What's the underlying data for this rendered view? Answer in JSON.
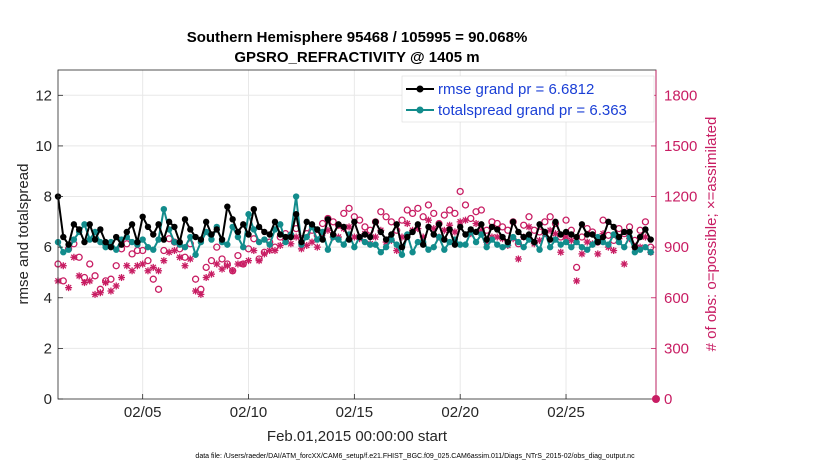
{
  "chart_data": {
    "type": "line",
    "title": "Southern Hemisphere 95468 / 105995 = 90.068%",
    "subtitle": "GPSRO_REFRACTIVITY @ 1405 m",
    "xlabel": "Feb.01,2015 00:00:00 start",
    "ylabel": "rmse and totalspread",
    "ylabel_right": "# of obs: o=possible; ×=assimilated",
    "xlim": [
      1,
      29.25
    ],
    "ylim": [
      0,
      13
    ],
    "ylim_right": [
      0,
      1950
    ],
    "xticks": [
      5,
      10,
      15,
      20,
      25
    ],
    "xtick_labels": [
      "02/05",
      "02/10",
      "02/15",
      "02/20",
      "02/25"
    ],
    "yticks": [
      0,
      2,
      4,
      6,
      8,
      10,
      12
    ],
    "yticks_right": [
      0,
      300,
      600,
      900,
      1200,
      1500,
      1800
    ],
    "grid": true,
    "legend_position": "top-right",
    "footnote": "data file: /Users/raeder/DAI/ATM_forcXX/CAM6_setup/f.e21.FHIST_BGC.f09_025.CAM6assim.011/Diags_NTrS_2015-02/obs_diag_output.nc",
    "series": [
      {
        "name": "rmse grand pr = 6.6812",
        "axis": "left",
        "color": "#000000",
        "marker": "dot",
        "x": [
          1.0,
          1.25,
          1.5,
          1.75,
          2.0,
          2.25,
          2.5,
          2.75,
          3.0,
          3.25,
          3.5,
          3.75,
          4.0,
          4.25,
          4.5,
          4.75,
          5.0,
          5.25,
          5.5,
          5.75,
          6.0,
          6.25,
          6.5,
          6.75,
          7.0,
          7.25,
          7.5,
          7.75,
          8.0,
          8.25,
          8.5,
          8.75,
          9.0,
          9.25,
          9.5,
          9.75,
          10.0,
          10.25,
          10.5,
          10.75,
          11.0,
          11.25,
          11.5,
          11.75,
          12.0,
          12.25,
          12.5,
          12.75,
          13.0,
          13.25,
          13.5,
          13.75,
          14.0,
          14.25,
          14.5,
          14.75,
          15.0,
          15.25,
          15.5,
          15.75,
          16.0,
          16.25,
          16.5,
          16.75,
          17.0,
          17.25,
          17.5,
          17.75,
          18.0,
          18.25,
          18.5,
          18.75,
          19.0,
          19.25,
          19.5,
          19.75,
          20.0,
          20.25,
          20.5,
          20.75,
          21.0,
          21.25,
          21.5,
          21.75,
          22.0,
          22.25,
          22.5,
          22.75,
          23.0,
          23.25,
          23.5,
          23.75,
          24.0,
          24.25,
          24.5,
          24.75,
          25.0,
          25.25,
          25.5,
          25.75,
          26.0,
          26.25,
          26.5,
          26.75,
          27.0,
          27.25,
          27.5,
          27.75,
          28.0,
          28.25,
          28.5,
          28.75,
          29.0
        ],
        "values": [
          8.0,
          6.4,
          6.1,
          6.9,
          6.7,
          6.2,
          6.9,
          6.3,
          6.7,
          6.2,
          6.0,
          6.4,
          6.1,
          6.6,
          6.9,
          6.2,
          7.2,
          6.8,
          6.5,
          6.9,
          6.3,
          7.0,
          6.8,
          6.2,
          7.1,
          6.7,
          6.4,
          6.3,
          7.0,
          6.5,
          6.7,
          6.3,
          7.6,
          7.1,
          6.6,
          6.9,
          6.5,
          7.5,
          6.8,
          6.6,
          6.5,
          7.0,
          6.5,
          6.4,
          6.4,
          7.3,
          6.2,
          7.0,
          6.9,
          6.7,
          6.3,
          7.1,
          6.5,
          6.9,
          6.8,
          6.3,
          7.0,
          6.4,
          6.5,
          6.4,
          7.0,
          6.6,
          6.3,
          6.5,
          6.9,
          6.0,
          6.4,
          6.6,
          6.9,
          6.1,
          6.8,
          6.5,
          6.9,
          6.3,
          6.7,
          6.1,
          6.8,
          6.5,
          6.7,
          6.6,
          6.9,
          6.3,
          6.8,
          6.7,
          6.4,
          6.2,
          7.0,
          6.6,
          6.4,
          6.5,
          6.2,
          6.9,
          6.6,
          6.3,
          7.0,
          6.5,
          6.6,
          6.5,
          6.4,
          6.9,
          6.5,
          6.5,
          6.2,
          6.4,
          7.0,
          6.8,
          6.4,
          6.6,
          6.6,
          6.0,
          6.4,
          6.7,
          6.3
        ],
        "legend": "rmse grand pr = 6.6812"
      },
      {
        "name": "totalspread grand pr = 6.363",
        "axis": "left",
        "color": "#128c8c",
        "marker": "dot",
        "x": [
          1.0,
          1.25,
          1.5,
          1.75,
          2.0,
          2.25,
          2.5,
          2.75,
          3.0,
          3.25,
          3.5,
          3.75,
          4.0,
          4.25,
          4.5,
          4.75,
          5.0,
          5.25,
          5.5,
          5.75,
          6.0,
          6.25,
          6.5,
          6.75,
          7.0,
          7.25,
          7.5,
          7.75,
          8.0,
          8.25,
          8.5,
          8.75,
          9.0,
          9.25,
          9.5,
          9.75,
          10.0,
          10.25,
          10.5,
          10.75,
          11.0,
          11.25,
          11.5,
          11.75,
          12.0,
          12.25,
          12.5,
          12.75,
          13.0,
          13.25,
          13.5,
          13.75,
          14.0,
          14.25,
          14.5,
          14.75,
          15.0,
          15.25,
          15.5,
          15.75,
          16.0,
          16.25,
          16.5,
          16.75,
          17.0,
          17.25,
          17.5,
          17.75,
          18.0,
          18.25,
          18.5,
          18.75,
          19.0,
          19.25,
          19.5,
          19.75,
          20.0,
          20.25,
          20.5,
          20.75,
          21.0,
          21.25,
          21.5,
          21.75,
          22.0,
          22.25,
          22.5,
          22.75,
          23.0,
          23.25,
          23.5,
          23.75,
          24.0,
          24.25,
          24.5,
          24.75,
          25.0,
          25.25,
          25.5,
          25.75,
          26.0,
          26.25,
          26.5,
          26.75,
          27.0,
          27.25,
          27.5,
          27.75,
          28.0,
          28.25,
          28.5,
          28.75,
          29.0
        ],
        "values": [
          6.2,
          5.8,
          5.9,
          6.3,
          6.6,
          6.9,
          6.3,
          6.6,
          6.2,
          6.0,
          6.2,
          5.9,
          6.3,
          6.4,
          6.2,
          6.1,
          6.3,
          6.0,
          5.9,
          6.3,
          7.5,
          6.7,
          6.2,
          6.1,
          6.0,
          6.4,
          5.7,
          6.2,
          6.6,
          6.3,
          6.8,
          6.2,
          6.1,
          6.8,
          6.4,
          6.0,
          7.3,
          6.7,
          6.2,
          6.3,
          6.1,
          6.7,
          6.9,
          6.2,
          6.5,
          8.0,
          6.1,
          6.4,
          6.8,
          6.3,
          6.6,
          5.9,
          6.4,
          6.3,
          6.1,
          6.5,
          6.0,
          6.4,
          6.2,
          6.1,
          6.1,
          5.8,
          6.0,
          6.3,
          6.1,
          5.7,
          6.5,
          5.8,
          6.2,
          6.2,
          5.9,
          6.0,
          6.4,
          5.9,
          6.2,
          6.3,
          6.1,
          6.1,
          6.6,
          6.2,
          6.5,
          6.0,
          6.3,
          6.1,
          6.0,
          6.1,
          6.4,
          6.2,
          6.0,
          6.3,
          6.2,
          5.9,
          6.6,
          6.0,
          6.3,
          6.1,
          6.2,
          6.0,
          6.2,
          6.0,
          5.9,
          6.1,
          6.4,
          6.2,
          6.1,
          6.5,
          6.2,
          6.0,
          6.4,
          5.8,
          5.9,
          6.0,
          5.8
        ],
        "legend": "totalspread grand pr = 6.363"
      },
      {
        "name": "possible",
        "axis": "right",
        "color": "#c81d63",
        "marker": "circle",
        "x": [
          1.0,
          1.25,
          1.5,
          1.75,
          2.0,
          2.25,
          2.5,
          2.75,
          3.0,
          3.25,
          3.5,
          3.75,
          4.0,
          4.25,
          4.5,
          4.75,
          5.0,
          5.25,
          5.5,
          5.75,
          6.0,
          6.25,
          6.5,
          6.75,
          7.0,
          7.25,
          7.5,
          7.75,
          8.0,
          8.25,
          8.5,
          8.75,
          9.0,
          9.25,
          9.5,
          9.75,
          10.0,
          10.25,
          10.5,
          10.75,
          11.0,
          11.25,
          11.5,
          11.75,
          12.0,
          12.25,
          12.5,
          12.75,
          13.0,
          13.25,
          13.5,
          13.75,
          14.0,
          14.25,
          14.5,
          14.75,
          15.0,
          15.25,
          15.5,
          15.75,
          16.0,
          16.25,
          16.5,
          16.75,
          17.0,
          17.25,
          17.5,
          17.75,
          18.0,
          18.25,
          18.5,
          18.75,
          19.0,
          19.25,
          19.5,
          19.75,
          20.0,
          20.25,
          20.5,
          20.75,
          21.0,
          21.25,
          21.5,
          21.75,
          22.0,
          22.25,
          22.5,
          22.75,
          23.0,
          23.25,
          23.5,
          23.75,
          24.0,
          24.25,
          24.5,
          24.75,
          25.0,
          25.25,
          25.5,
          25.75,
          26.0,
          26.25,
          26.5,
          26.75,
          27.0,
          27.25,
          27.5,
          27.75,
          28.0,
          28.25,
          28.5,
          28.75,
          29.0
        ],
        "values": [
          800,
          700,
          890,
          920,
          840,
          720,
          800,
          730,
          650,
          700,
          710,
          790,
          890,
          920,
          860,
          880,
          880,
          820,
          710,
          650,
          880,
          950,
          930,
          890,
          840,
          920,
          710,
          650,
          780,
          820,
          900,
          830,
          800,
          760,
          850,
          800,
          890,
          950,
          830,
          870,
          930,
          900,
          960,
          980,
          970,
          1010,
          950,
          980,
          1000,
          970,
          1040,
          1070,
          1050,
          1030,
          1100,
          1130,
          1080,
          1060,
          1020,
          1000,
          1050,
          1110,
          1080,
          1050,
          1000,
          1060,
          1120,
          1100,
          1130,
          1080,
          1150,
          1100,
          1040,
          1090,
          1120,
          1100,
          1230,
          1150,
          1070,
          1110,
          1120,
          1000,
          1050,
          1040,
          1020,
          1000,
          1050,
          920,
          1030,
          1080,
          1000,
          990,
          1050,
          1080,
          1040,
          960,
          1060,
          1000,
          780,
          960,
          1010,
          990,
          930,
          1060,
          970,
          940,
          1010,
          980,
          1020,
          940,
          1000,
          1050,
          900
        ],
        "legend": ""
      },
      {
        "name": "assimilated",
        "axis": "right",
        "color": "#c81d63",
        "marker": "star",
        "x": [
          1.0,
          1.25,
          1.5,
          1.75,
          2.0,
          2.25,
          2.5,
          2.75,
          3.0,
          3.25,
          3.5,
          3.75,
          4.0,
          4.25,
          4.5,
          4.75,
          5.0,
          5.25,
          5.5,
          5.75,
          6.0,
          6.25,
          6.5,
          6.75,
          7.0,
          7.25,
          7.5,
          7.75,
          8.0,
          8.25,
          8.5,
          8.75,
          9.0,
          9.25,
          9.5,
          9.75,
          10.0,
          10.25,
          10.5,
          10.75,
          11.0,
          11.25,
          11.5,
          11.75,
          12.0,
          12.25,
          12.5,
          12.75,
          13.0,
          13.25,
          13.5,
          13.75,
          14.0,
          14.25,
          14.5,
          14.75,
          15.0,
          15.25,
          15.5,
          15.75,
          16.0,
          16.25,
          16.5,
          16.75,
          17.0,
          17.25,
          17.5,
          17.75,
          18.0,
          18.25,
          18.5,
          18.75,
          19.0,
          19.25,
          19.5,
          19.75,
          20.0,
          20.25,
          20.5,
          20.75,
          21.0,
          21.25,
          21.5,
          21.75,
          22.0,
          22.25,
          22.5,
          22.75,
          23.0,
          23.25,
          23.5,
          23.75,
          24.0,
          24.25,
          24.5,
          24.75,
          25.0,
          25.25,
          25.5,
          25.75,
          26.0,
          26.25,
          26.5,
          26.75,
          27.0,
          27.25,
          27.5,
          27.75,
          28.0,
          28.25,
          28.5,
          28.75,
          29.0
        ],
        "values": [
          700,
          790,
          660,
          840,
          730,
          690,
          700,
          620,
          630,
          690,
          640,
          670,
          720,
          790,
          760,
          790,
          800,
          760,
          780,
          760,
          820,
          870,
          880,
          840,
          790,
          830,
          640,
          620,
          720,
          740,
          800,
          770,
          790,
          760,
          800,
          800,
          820,
          880,
          820,
          860,
          880,
          880,
          910,
          940,
          920,
          960,
          890,
          910,
          930,
          900,
          980,
          1000,
          960,
          960,
          1010,
          1020,
          960,
          950,
          980,
          920,
          960,
          1000,
          930,
          940,
          880,
          960,
          1040,
          1000,
          1010,
          960,
          1060,
          1010,
          960,
          1000,
          1030,
          990,
          1050,
          1060,
          980,
          1040,
          1000,
          930,
          960,
          960,
          950,
          910,
          950,
          830,
          960,
          1020,
          920,
          940,
          980,
          1000,
          980,
          870,
          960,
          940,
          700,
          860,
          930,
          920,
          860,
          980,
          900,
          880,
          950,
          800,
          950,
          900,
          900,
          960,
          870
        ],
        "legend": ""
      }
    ]
  },
  "colors": {
    "rmse": "#000000",
    "totalspread": "#128c8c",
    "obs": "#c81d63",
    "legend_text": "#1a3fd6",
    "grid": "#e8e8e8"
  }
}
